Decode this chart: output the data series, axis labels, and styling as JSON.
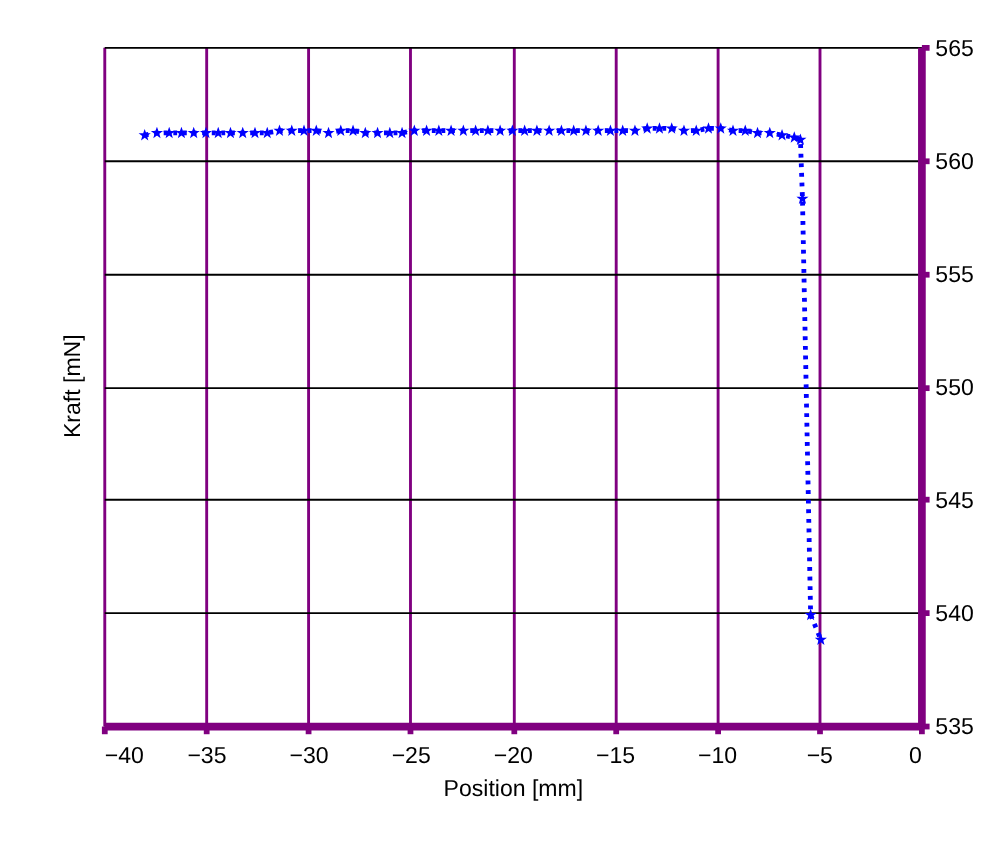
{
  "chart_data": {
    "type": "line",
    "xlabel": "Position [mm]",
    "ylabel": "Kraft [mN]",
    "x": [
      -38.0,
      -37.4,
      -36.8,
      -36.2,
      -35.6,
      -35.0,
      -34.4,
      -33.8,
      -33.2,
      -32.6,
      -32.0,
      -31.4,
      -30.8,
      -30.2,
      -29.6,
      -29.0,
      -28.4,
      -27.8,
      -27.2,
      -26.6,
      -26.0,
      -25.4,
      -24.8,
      -24.2,
      -23.6,
      -23.0,
      -22.4,
      -21.8,
      -21.2,
      -20.6,
      -20.0,
      -19.4,
      -18.8,
      -18.2,
      -17.6,
      -17.0,
      -16.4,
      -15.8,
      -15.2,
      -14.6,
      -14.0,
      -13.4,
      -12.8,
      -12.2,
      -11.6,
      -11.0,
      -10.4,
      -9.8,
      -9.2,
      -8.6,
      -8.0,
      -7.4,
      -6.8,
      -6.2,
      -5.9,
      -5.8,
      -5.4,
      -4.9
    ],
    "series": [
      {
        "color": "#0000ff",
        "values": [
          561.1,
          561.2,
          561.2,
          561.2,
          561.2,
          561.2,
          561.2,
          561.2,
          561.2,
          561.2,
          561.2,
          561.3,
          561.3,
          561.3,
          561.3,
          561.2,
          561.3,
          561.3,
          561.2,
          561.2,
          561.2,
          561.2,
          561.3,
          561.3,
          561.3,
          561.3,
          561.3,
          561.3,
          561.3,
          561.3,
          561.3,
          561.3,
          561.3,
          561.3,
          561.3,
          561.3,
          561.3,
          561.3,
          561.3,
          561.3,
          561.3,
          561.4,
          561.4,
          561.4,
          561.3,
          561.3,
          561.4,
          561.4,
          561.3,
          561.3,
          561.2,
          561.2,
          561.1,
          561.0,
          560.9,
          558.3,
          539.9,
          538.8
        ]
      }
    ],
    "xlim": [
      -40,
      0
    ],
    "xticks": [
      -40,
      -35,
      -30,
      -25,
      -20,
      -15,
      -10,
      -5,
      0
    ],
    "ylim": [
      535,
      565
    ],
    "yticks": [
      535,
      540,
      545,
      550,
      555,
      560,
      565
    ],
    "grid": true,
    "marker": "star",
    "line_style": "dotted"
  }
}
